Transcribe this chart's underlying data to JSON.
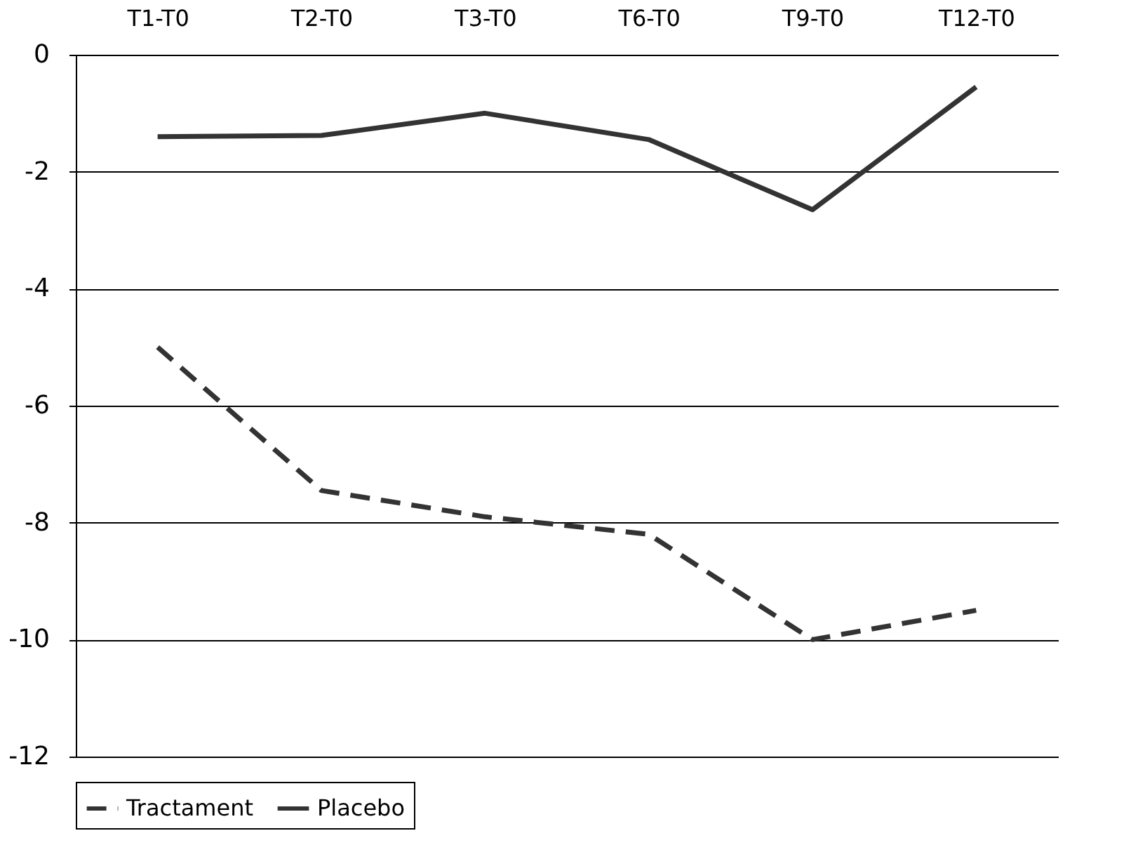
{
  "chart_data": {
    "type": "line",
    "categories": [
      "T1-T0",
      "T2-T0",
      "T3-T0",
      "T6-T0",
      "T9-T0",
      "T12-T0"
    ],
    "series": [
      {
        "name": "Tractament",
        "color": "#333333",
        "line_style": "dashed",
        "values": [
          -5.0,
          -7.45,
          -7.9,
          -8.2,
          -10.0,
          -9.5
        ]
      },
      {
        "name": "Placebo",
        "color": "#333333",
        "line_style": "solid",
        "values": [
          -1.4,
          -1.38,
          -1.0,
          -1.45,
          -2.65,
          -0.55
        ]
      }
    ],
    "ylim": [
      -12,
      0
    ],
    "yticks": [
      -12,
      -10,
      -8,
      -6,
      -4,
      -2,
      0
    ],
    "grid": "y",
    "legend": "bottom",
    "marker": "none"
  }
}
